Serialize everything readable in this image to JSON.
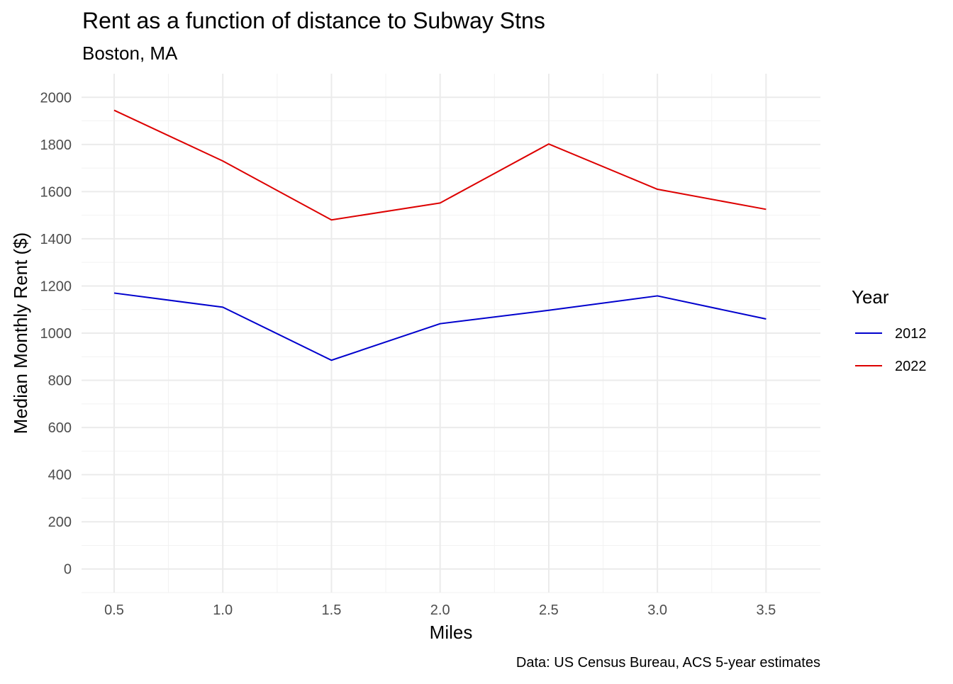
{
  "chart_data": {
    "type": "line",
    "title": "Rent as a function of distance to Subway Stns",
    "subtitle": "Boston, MA",
    "xlabel": "Miles",
    "ylabel": "Median Monthly Rent ($)",
    "caption": "Data: US Census Bureau, ACS 5-year estimates",
    "x": [
      0.5,
      1.0,
      1.5,
      2.0,
      2.5,
      3.0,
      3.5
    ],
    "xlim": [
      0.35,
      3.75
    ],
    "ylim": [
      -100,
      2100
    ],
    "x_ticks": [
      0.5,
      1.0,
      1.5,
      2.0,
      2.5,
      3.0,
      3.5
    ],
    "x_tick_labels": [
      "0.5",
      "1.0",
      "1.5",
      "2.0",
      "2.5",
      "3.0",
      "3.5"
    ],
    "x_minor_ticks": [
      0.75,
      1.25,
      1.75,
      2.25,
      2.75,
      3.25
    ],
    "y_ticks": [
      0,
      200,
      400,
      600,
      800,
      1000,
      1200,
      1400,
      1600,
      1800,
      2000
    ],
    "y_tick_labels": [
      "0",
      "200",
      "400",
      "600",
      "800",
      "1000",
      "1200",
      "1400",
      "1600",
      "1800",
      "2000"
    ],
    "y_minor_ticks": [
      -100,
      100,
      300,
      500,
      700,
      900,
      1100,
      1300,
      1500,
      1700,
      1900
    ],
    "grid": true,
    "legend": {
      "title": "Year",
      "position": "right"
    },
    "series": [
      {
        "name": "2012",
        "color": "#0000cd",
        "values": [
          1170,
          1110,
          885,
          1040,
          1097,
          1158,
          1060
        ]
      },
      {
        "name": "2022",
        "color": "#dd0000",
        "values": [
          1945,
          1730,
          1480,
          1552,
          1802,
          1610,
          1525
        ]
      }
    ]
  }
}
